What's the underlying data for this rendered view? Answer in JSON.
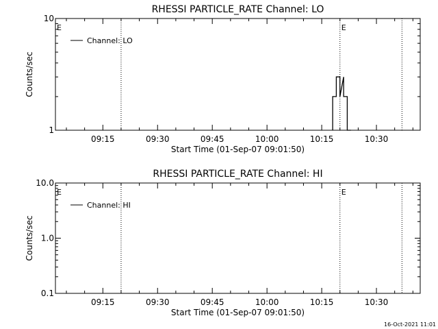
{
  "footer": {
    "timestamp": "16-Oct-2021 11:01"
  },
  "chart_data": [
    {
      "type": "line",
      "title": "RHESSI PARTICLE_RATE Channel: LO",
      "xlabel": "Start Time (01-Sep-07 09:01:50)",
      "ylabel": "Counts/sec",
      "yscale": "log",
      "ylim": [
        1,
        10
      ],
      "ytick_values": [
        1,
        10
      ],
      "ytick_labels": [
        "1",
        "10"
      ],
      "xlim": [
        "09:02",
        "10:42"
      ],
      "xtick_values": [
        "09:15",
        "09:30",
        "09:45",
        "10:00",
        "10:15",
        "10:30"
      ],
      "xtick_labels": [
        "09:15",
        "09:30",
        "09:45",
        "10:00",
        "10:15",
        "10:30"
      ],
      "vlines": [
        "09:20",
        "10:20",
        "10:37"
      ],
      "markers": [
        {
          "x": "09:02",
          "label": "E"
        },
        {
          "x": "10:20",
          "label": "E"
        }
      ],
      "legend": {
        "position": "top-left",
        "entries": [
          "Channel: LO"
        ]
      },
      "series": [
        {
          "name": "Channel: LO",
          "x": [
            "10:18",
            "10:18",
            "10:19",
            "10:19",
            "10:20",
            "10:20",
            "10:21",
            "10:21",
            "10:22",
            "10:22",
            "10:23",
            "10:23"
          ],
          "values": [
            1,
            2,
            2,
            3,
            3,
            2,
            3,
            2,
            2,
            1,
            1,
            1
          ]
        }
      ]
    },
    {
      "type": "line",
      "title": "RHESSI PARTICLE_RATE Channel: HI",
      "xlabel": "Start Time (01-Sep-07 09:01:50)",
      "ylabel": "Counts/sec",
      "yscale": "log",
      "ylim": [
        0.1,
        10
      ],
      "ytick_values": [
        0.1,
        1,
        10
      ],
      "ytick_labels": [
        "0.1",
        "1.0",
        "10.0"
      ],
      "xlim": [
        "09:02",
        "10:42"
      ],
      "xtick_values": [
        "09:15",
        "09:30",
        "09:45",
        "10:00",
        "10:15",
        "10:30"
      ],
      "xtick_labels": [
        "09:15",
        "09:30",
        "09:45",
        "10:00",
        "10:15",
        "10:30"
      ],
      "vlines": [
        "09:20",
        "10:20",
        "10:37"
      ],
      "markers": [
        {
          "x": "09:02",
          "label": "E"
        },
        {
          "x": "10:20",
          "label": "E"
        }
      ],
      "legend": {
        "position": "top-left",
        "entries": [
          "Channel: HI"
        ]
      },
      "series": [
        {
          "name": "Channel: HI",
          "x": [],
          "values": []
        }
      ]
    }
  ]
}
